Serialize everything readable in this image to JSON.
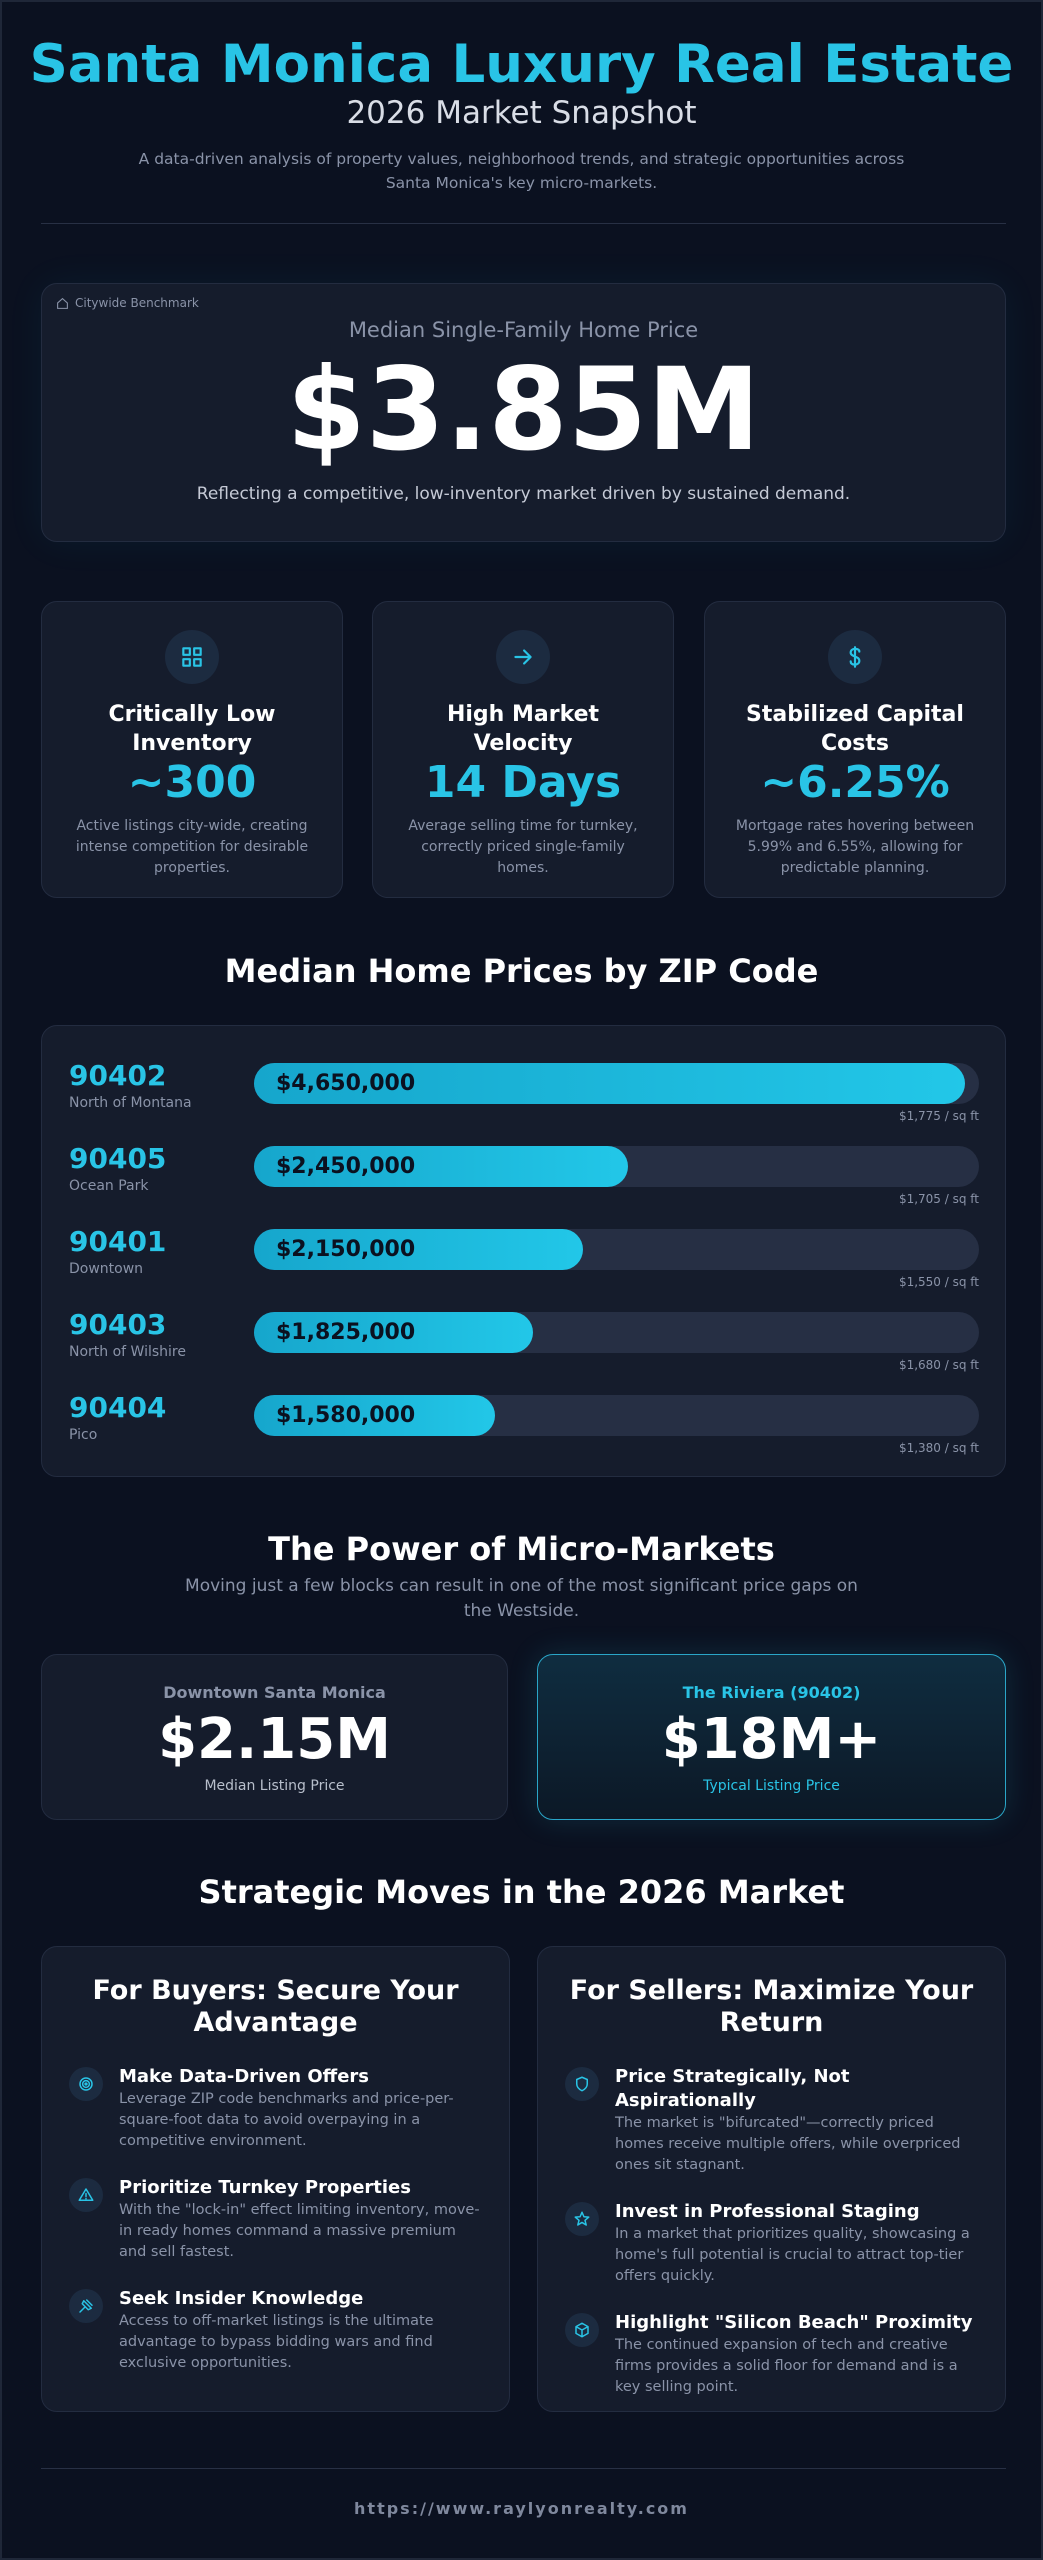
{
  "header": {
    "title": "Santa Monica Luxury Real Estate",
    "subtitle": "2026 Market Snapshot",
    "description": "A data-driven analysis of property values, neighborhood trends, and strategic opportunities across Santa Monica's key micro-markets."
  },
  "hero": {
    "tag": "Citywide Benchmark",
    "label": "Median Single-Family Home Price",
    "value": "$3.85M",
    "caption": "Reflecting a competitive, low-inventory market driven by sustained demand."
  },
  "stats": [
    {
      "title": "Critically Low Inventory",
      "value": "~300",
      "description": "Active listings city-wide, creating intense competition for desirable properties."
    },
    {
      "title": "High Market Velocity",
      "value": "14 Days",
      "description": "Average selling time for turnkey, correctly priced single-family homes."
    },
    {
      "title": "Stabilized Capital Costs",
      "value": "~6.25%",
      "description": "Mortgage rates hovering between 5.99% and 6.55%, allowing for predictable planning."
    }
  ],
  "chart_data": {
    "type": "bar",
    "title": "Median Home Prices by ZIP Code",
    "categories": [
      "90402",
      "90405",
      "90401",
      "90403",
      "90404"
    ],
    "neighborhoods": [
      "North of Montana",
      "Ocean Park",
      "Downtown",
      "North of Wilshire",
      "Pico"
    ],
    "values": [
      4650000,
      2450000,
      2150000,
      1825000,
      1580000
    ],
    "value_labels": [
      "$4,650,000",
      "$2,450,000",
      "$2,150,000",
      "$1,825,000",
      "$1,580,000"
    ],
    "price_per_sqft": [
      "$1,775 / sq ft",
      "$1,705 / sq ft",
      "$1,550 / sq ft",
      "$1,680 / sq ft",
      "$1,380 / sq ft"
    ],
    "color": "#22c7e8"
  },
  "micro_markets": {
    "title": "The Power of Micro-Markets",
    "subtitle": "Moving just a few blocks can result in one of the most significant price gaps on the Westside.",
    "cards": [
      {
        "name": "Downtown Santa Monica",
        "value": "$2.15M",
        "label": "Median Listing Price"
      },
      {
        "name": "The Riviera (90402)",
        "value": "$18M+",
        "label": "Typical Listing Price"
      }
    ]
  },
  "strategy": {
    "title": "Strategic Moves in the 2026 Market",
    "columns": [
      {
        "heading": "For Buyers: Secure Your Advantage",
        "items": [
          {
            "title": "Make Data-Driven Offers",
            "text": "Leverage ZIP code benchmarks and price-per-square-foot data to avoid overpaying in a competitive environment."
          },
          {
            "title": "Prioritize Turnkey Properties",
            "text": "With the \"lock-in\" effect limiting inventory, move-in ready homes command a massive premium and sell fastest."
          },
          {
            "title": "Seek Insider Knowledge",
            "text": "Access to off-market listings is the ultimate advantage to bypass bidding wars and find exclusive opportunities."
          }
        ]
      },
      {
        "heading": "For Sellers: Maximize Your Return",
        "items": [
          {
            "title": "Price Strategically, Not Aspirationally",
            "text": "The market is \"bifurcated\"—correctly priced homes receive multiple offers, while overpriced ones sit stagnant."
          },
          {
            "title": "Invest in Professional Staging",
            "text": "In a market that prioritizes quality, showcasing a home's full potential is crucial to attract top-tier offers quickly."
          },
          {
            "title": "Highlight \"Silicon Beach\" Proximity",
            "text": "The continued expansion of tech and creative firms provides a solid floor for demand and is a key selling point."
          }
        ]
      }
    ]
  },
  "footer": {
    "url": "https://www.raylyonrealty.com"
  }
}
